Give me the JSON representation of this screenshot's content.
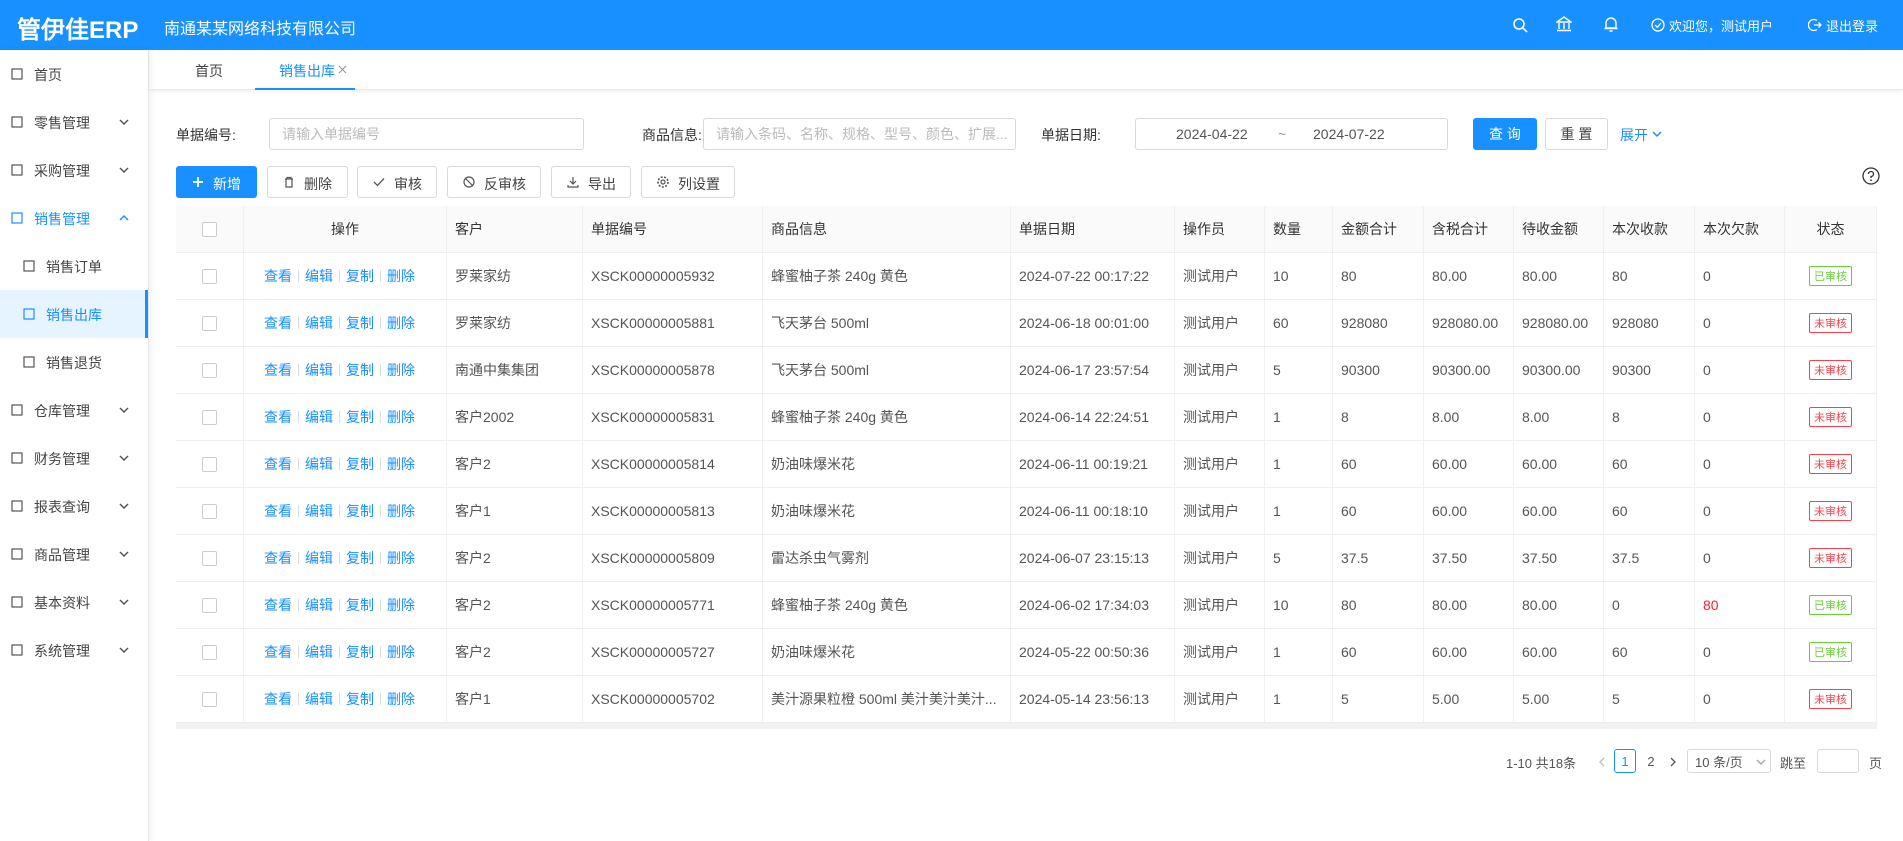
{
  "header": {
    "logo": "管伊佳ERP",
    "company": "南通某某网络科技有限公司",
    "welcome": "欢迎您，测试用户",
    "logout": "退出登录"
  },
  "menu": [
    {
      "label": "首页"
    },
    {
      "label": "零售管理"
    },
    {
      "label": "采购管理"
    },
    {
      "label": "销售管理",
      "children": [
        "销售订单",
        "销售出库",
        "销售退货"
      ]
    },
    {
      "label": "仓库管理"
    },
    {
      "label": "财务管理"
    },
    {
      "label": "报表查询"
    },
    {
      "label": "商品管理"
    },
    {
      "label": "基本资料"
    },
    {
      "label": "系统管理"
    }
  ],
  "tabs": [
    "首页",
    "销售出库"
  ],
  "filters": {
    "bill_no": {
      "label": "单据编号:",
      "placeholder": "请输入单据编号"
    },
    "goods": {
      "label": "商品信息:",
      "placeholder": "请输入条码、名称、规格、型号、颜色、扩展..."
    },
    "date": {
      "label": "单据日期:",
      "start": "2024-04-22",
      "separator": "~",
      "end": "2024-07-22"
    },
    "buttons": [
      "查 询",
      "重 置"
    ],
    "expand": "展开"
  },
  "toolbar": [
    "新增",
    "删除",
    "审核",
    "反审核",
    "导出",
    "列设置"
  ],
  "table": {
    "columns": [
      "操作",
      "客户",
      "单据编号",
      "商品信息",
      "单据日期",
      "操作员",
      "数量",
      "金额合计",
      "含税合计",
      "待收金额",
      "本次收款",
      "本次欠款",
      "状态"
    ],
    "actions": [
      "查看",
      "编辑",
      "复制",
      "删除"
    ],
    "rows": [
      [
        "罗莱家纺",
        "XSCK00000005932",
        "蜂蜜柚子茶 240g 黄色",
        "2024-07-22 00:17:22",
        "测试用户",
        "10",
        "80",
        "80.00",
        "80.00",
        "80",
        "0",
        {
          "text": "已审核",
          "color": "#52c41a"
        }
      ],
      [
        "罗莱家纺",
        "XSCK00000005881",
        "飞天茅台 500ml",
        "2024-06-18 00:01:00",
        "测试用户",
        "60",
        "928080",
        "928080.00",
        "928080.00",
        "928080",
        "0",
        {
          "text": "未审核",
          "color": "#f5222d"
        }
      ],
      [
        "南通中集集团",
        "XSCK00000005878",
        "飞天茅台 500ml",
        "2024-06-17 23:57:54",
        "测试用户",
        "5",
        "90300",
        "90300.00",
        "90300.00",
        "90300",
        "0",
        {
          "text": "未审核",
          "color": "#f5222d"
        }
      ],
      [
        "客户2002",
        "XSCK00000005831",
        "蜂蜜柚子茶 240g 黄色",
        "2024-06-14 22:24:51",
        "测试用户",
        "1",
        "8",
        "8.00",
        "8.00",
        "8",
        "0",
        {
          "text": "未审核",
          "color": "#f5222d"
        }
      ],
      [
        "客户2",
        "XSCK00000005814",
        "奶油味爆米花",
        "2024-06-11 00:19:21",
        "测试用户",
        "1",
        "60",
        "60.00",
        "60.00",
        "60",
        "0",
        {
          "text": "未审核",
          "color": "#f5222d"
        }
      ],
      [
        "客户1",
        "XSCK00000005813",
        "奶油味爆米花",
        "2024-06-11 00:18:10",
        "测试用户",
        "1",
        "60",
        "60.00",
        "60.00",
        "60",
        "0",
        {
          "text": "未审核",
          "color": "#f5222d"
        }
      ],
      [
        "客户2",
        "XSCK00000005809",
        "雷达杀虫气雾剂",
        "2024-06-07 23:15:13",
        "测试用户",
        "5",
        "37.5",
        "37.50",
        "37.50",
        "37.5",
        "0",
        {
          "text": "未审核",
          "color": "#f5222d"
        }
      ],
      [
        "客户2",
        "XSCK00000005771",
        "蜂蜜柚子茶 240g 黄色",
        "2024-06-02 17:34:03",
        "测试用户",
        "10",
        "80",
        "80.00",
        "80.00",
        "0",
        "80",
        {
          "text": "已审核",
          "color": "#52c41a"
        }
      ],
      [
        "客户2",
        "XSCK00000005727",
        "奶油味爆米花",
        "2024-05-22 00:50:36",
        "测试用户",
        "1",
        "60",
        "60.00",
        "60.00",
        "60",
        "0",
        {
          "text": "已审核",
          "color": "#52c41a"
        }
      ],
      [
        "客户1",
        "XSCK00000005702",
        "美汁源果粒橙 500ml 美汁美汁美汁...",
        "2024-05-14 23:56:13",
        "测试用户",
        "1",
        "5",
        "5.00",
        "5.00",
        "5",
        "0",
        {
          "text": "未审核",
          "color": "#f5222d"
        }
      ]
    ]
  },
  "pagination": {
    "total": "1-10 共18条",
    "pages": [
      "1",
      "2"
    ],
    "page_size": "10 条/页",
    "jump": "跳至",
    "page": "页"
  }
}
